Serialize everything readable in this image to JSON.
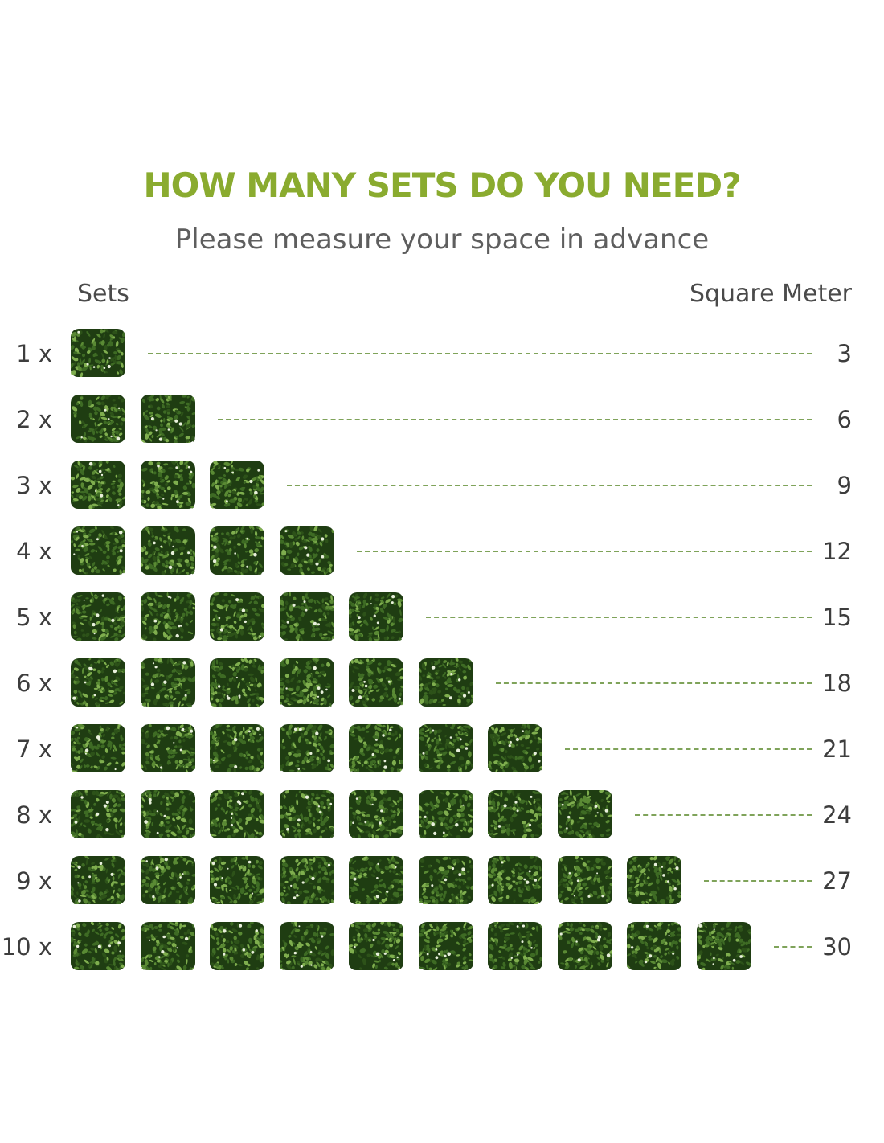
{
  "header": {
    "title": "HOW MANY SETS DO YOU NEED?",
    "subtitle": "Please measure your space in advance"
  },
  "columns": {
    "sets_label": "Sets",
    "area_label": "Square Meter"
  },
  "colors": {
    "title_green": "#8aab2f",
    "dash_green": "#7fa35a",
    "leaf_dark": "#1f3d12",
    "leaf_mid": "#3e6b24",
    "leaf_light": "#7fae4e",
    "flower": "#e9f0dc"
  },
  "tile_icon": "boxwood-hedge-panel",
  "rows": [
    {
      "label": "1 x",
      "sets": 1,
      "value": "3"
    },
    {
      "label": "2 x",
      "sets": 2,
      "value": "6"
    },
    {
      "label": "3 x",
      "sets": 3,
      "value": "9"
    },
    {
      "label": "4 x",
      "sets": 4,
      "value": "12"
    },
    {
      "label": "5 x",
      "sets": 5,
      "value": "15"
    },
    {
      "label": "6 x",
      "sets": 6,
      "value": "18"
    },
    {
      "label": "7 x",
      "sets": 7,
      "value": "21"
    },
    {
      "label": "8 x",
      "sets": 8,
      "value": "24"
    },
    {
      "label": "9 x",
      "sets": 9,
      "value": "27"
    },
    {
      "label": "10 x",
      "sets": 10,
      "value": "30"
    }
  ]
}
